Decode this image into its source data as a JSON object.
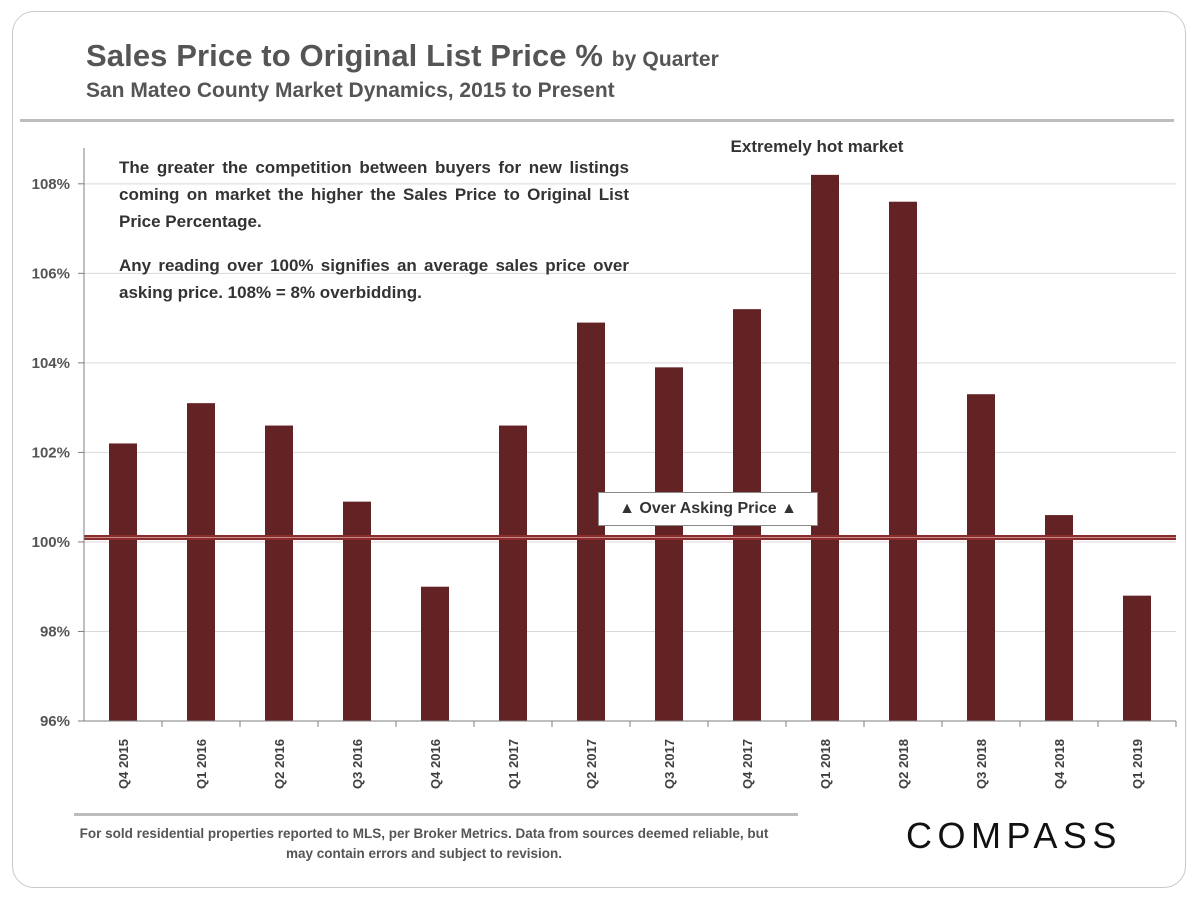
{
  "header": {
    "title": "Sales Price to Original List Price %",
    "title_suffix": "by Quarter",
    "subtitle": "San Mateo County Market Dynamics, 2015 to Present"
  },
  "annotations": {
    "note_paragraph_1": "The greater the competition between buyers for new listings coming on market the higher the Sales Price to Original List Price Percentage.",
    "note_paragraph_2": "Any reading over 100% signifies an average sales price over asking price. 108% = 8% overbidding.",
    "hot_market": "Extremely hot market",
    "over_asking": "▲ Over Asking Price ▲"
  },
  "footer": {
    "footnote": "For sold residential properties reported to MLS, per Broker Metrics. Data from sources deemed reliable, but may contain errors and subject to revision.",
    "brand": "COMPASS"
  },
  "chart_data": {
    "type": "bar",
    "title": "Sales Price to Original List Price %",
    "categories": [
      "Q4 2015",
      "Q1 2016",
      "Q2 2016",
      "Q3 2016",
      "Q4 2016",
      "Q1 2017",
      "Q2 2017",
      "Q3 2017",
      "Q4 2017",
      "Q1 2018",
      "Q2 2018",
      "Q3 2018",
      "Q4 2018",
      "Q1 2019"
    ],
    "values": [
      102.2,
      103.1,
      102.6,
      100.9,
      99.0,
      102.6,
      104.9,
      103.9,
      105.2,
      108.2,
      107.6,
      103.3,
      100.6,
      98.8
    ],
    "ylim": [
      96,
      108.8
    ],
    "yticks": [
      96,
      98,
      100,
      102,
      104,
      106,
      108
    ],
    "ytick_labels": [
      "96%",
      "98%",
      "100%",
      "102%",
      "104%",
      "106%",
      "108%"
    ],
    "reference_line": 100.1,
    "grid": true,
    "colors": {
      "bar": "#632325",
      "reference_line": "#8b2c2c",
      "gridline": "#d9d9d9",
      "axis": "#7f7f7f"
    }
  }
}
